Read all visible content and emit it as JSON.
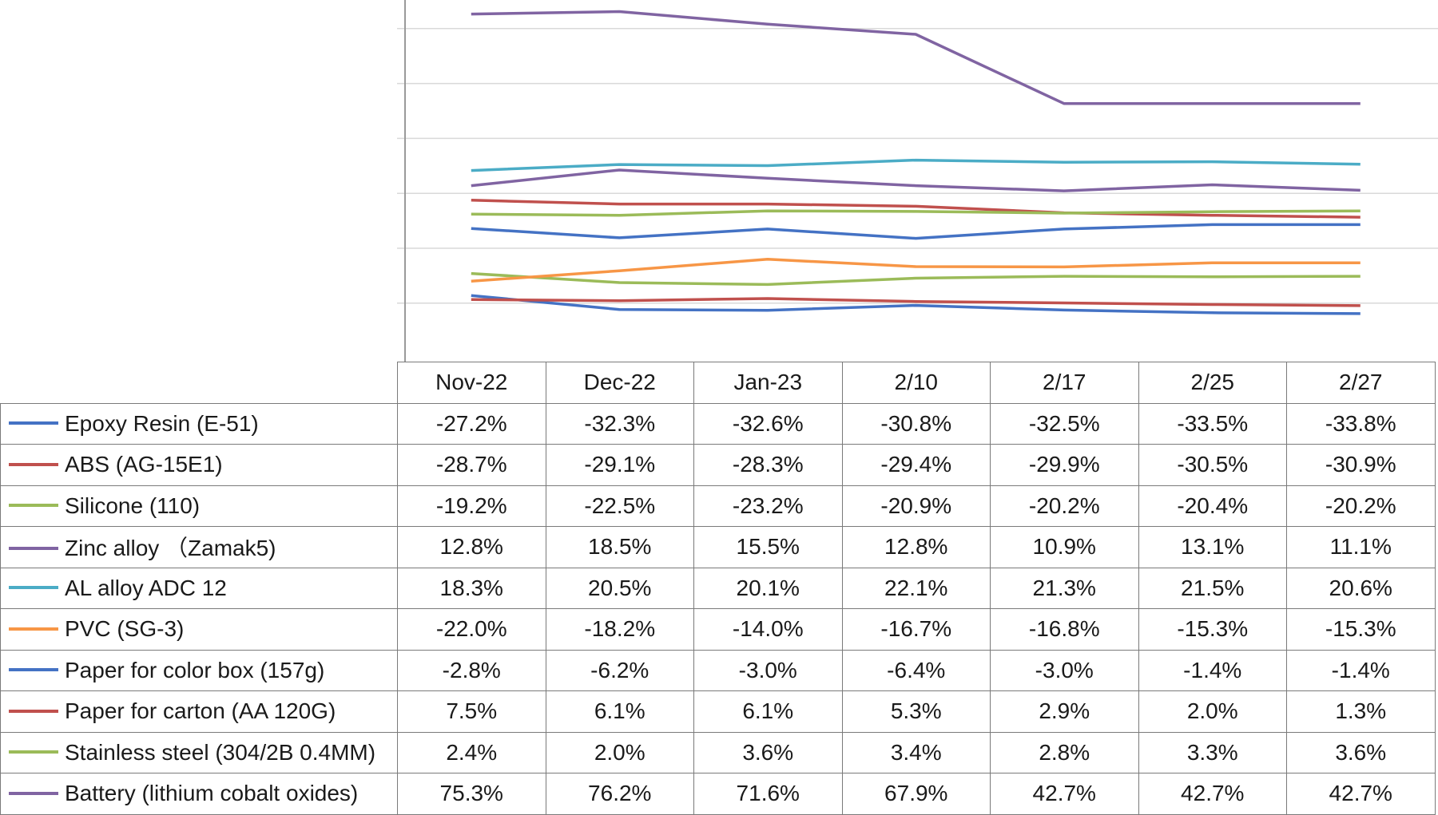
{
  "chart_data": {
    "type": "line",
    "categories": [
      "Nov-22",
      "Dec-22",
      "Jan-23",
      "2/10",
      "2/17",
      "2/25",
      "2/27"
    ],
    "grid": true,
    "legend": "table-left",
    "ylim": [
      -40,
      80
    ],
    "series": [
      {
        "name": "Epoxy Resin (E-51)",
        "color": "#4472C4",
        "values": [
          -27.2,
          -32.3,
          -32.6,
          -30.8,
          -32.5,
          -33.5,
          -33.8
        ],
        "labels": [
          "-27.2%",
          "-32.3%",
          "-32.6%",
          "-30.8%",
          "-32.5%",
          "-33.5%",
          "-33.8%"
        ]
      },
      {
        "name": "ABS (AG-15E1)",
        "color": "#C0504D",
        "values": [
          -28.7,
          -29.1,
          -28.3,
          -29.4,
          -29.9,
          -30.5,
          -30.9
        ],
        "labels": [
          "-28.7%",
          "-29.1%",
          "-28.3%",
          "-29.4%",
          "-29.9%",
          "-30.5%",
          "-30.9%"
        ]
      },
      {
        "name": "Silicone (110)",
        "color": "#9BBB59",
        "values": [
          -19.2,
          -22.5,
          -23.2,
          -20.9,
          -20.2,
          -20.4,
          -20.2
        ],
        "labels": [
          "-19.2%",
          "-22.5%",
          "-23.2%",
          "-20.9%",
          "-20.2%",
          "-20.4%",
          "-20.2%"
        ]
      },
      {
        "name": "Zinc alloy （Zamak5)",
        "color": "#8064A2",
        "values": [
          12.8,
          18.5,
          15.5,
          12.8,
          10.9,
          13.1,
          11.1
        ],
        "labels": [
          "12.8%",
          "18.5%",
          "15.5%",
          "12.8%",
          "10.9%",
          "13.1%",
          "11.1%"
        ]
      },
      {
        "name": "AL alloy ADC 12",
        "color": "#4BACC6",
        "values": [
          18.3,
          20.5,
          20.1,
          22.1,
          21.3,
          21.5,
          20.6
        ],
        "labels": [
          "18.3%",
          "20.5%",
          "20.1%",
          "22.1%",
          "21.3%",
          "21.5%",
          "20.6%"
        ]
      },
      {
        "name": "PVC (SG-3)",
        "color": "#F79646",
        "values": [
          -22.0,
          -18.2,
          -14.0,
          -16.7,
          -16.8,
          -15.3,
          -15.3
        ],
        "labels": [
          "-22.0%",
          "-18.2%",
          "-14.0%",
          "-16.7%",
          "-16.8%",
          "-15.3%",
          "-15.3%"
        ]
      },
      {
        "name": "Paper for color box (157g)",
        "color": "#4472C4",
        "values": [
          -2.8,
          -6.2,
          -3.0,
          -6.4,
          -3.0,
          -1.4,
          -1.4
        ],
        "labels": [
          "-2.8%",
          "-6.2%",
          "-3.0%",
          "-6.4%",
          "-3.0%",
          "-1.4%",
          "-1.4%"
        ]
      },
      {
        "name": "Paper for carton (AA 120G)",
        "color": "#C0504D",
        "values": [
          7.5,
          6.1,
          6.1,
          5.3,
          2.9,
          2.0,
          1.3
        ],
        "labels": [
          "7.5%",
          "6.1%",
          "6.1%",
          "5.3%",
          "2.9%",
          "2.0%",
          "1.3%"
        ]
      },
      {
        "name": "Stainless steel (304/2B 0.4MM)",
        "color": "#9BBB59",
        "values": [
          2.4,
          2.0,
          3.6,
          3.4,
          2.8,
          3.3,
          3.6
        ],
        "labels": [
          "2.4%",
          "2.0%",
          "3.6%",
          "3.4%",
          "2.8%",
          "3.3%",
          "3.6%"
        ]
      },
      {
        "name": "Battery (lithium cobalt oxides)",
        "color": "#8064A2",
        "values": [
          75.3,
          76.2,
          71.6,
          67.9,
          42.7,
          42.7,
          42.7
        ],
        "labels": [
          "75.3%",
          "76.2%",
          "71.6%",
          "67.9%",
          "42.7%",
          "42.7%",
          "42.7%"
        ]
      }
    ]
  }
}
